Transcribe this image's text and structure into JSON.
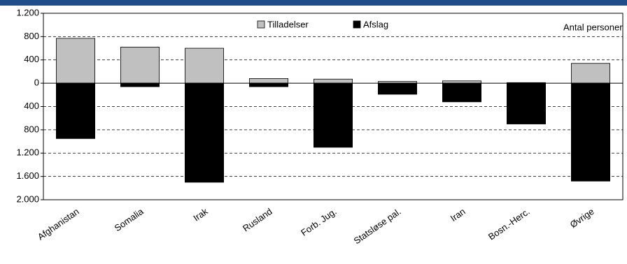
{
  "chart_data": {
    "type": "bar",
    "categories": [
      "Afghanistan",
      "Somalia",
      "Irak",
      "Rusland",
      "Forb. Jug.",
      "Statsløse pal.",
      "Iran",
      "Bosn.-Herc.",
      "Øvrige"
    ],
    "series": [
      {
        "name": "Tilladelser",
        "color": "#c0c0c0",
        "values": [
          770,
          620,
          600,
          80,
          70,
          30,
          40,
          10,
          340
        ]
      },
      {
        "name": "Afslag",
        "color": "#000000",
        "values": [
          -950,
          -60,
          -1700,
          -60,
          -1100,
          -190,
          -320,
          -700,
          -1680
        ]
      }
    ],
    "annotation": "Antal personer",
    "ylim": [
      -2000,
      1200
    ],
    "yticks": [
      {
        "value": 1200,
        "label": "1.200"
      },
      800,
      400,
      0,
      {
        "value": -400,
        "label": "400"
      },
      {
        "value": -800,
        "label": "800"
      },
      {
        "value": -1200,
        "label": "1.200"
      },
      {
        "value": -1600,
        "label": "1.600"
      },
      {
        "value": -2000,
        "label": "2.000"
      }
    ],
    "grid": true
  }
}
